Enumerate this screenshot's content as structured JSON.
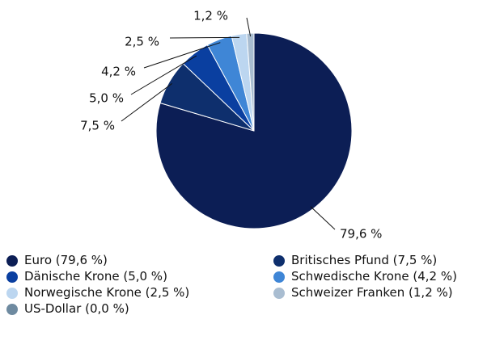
{
  "chart_data": {
    "type": "pie",
    "categories": [
      "Euro (79,6 %)",
      "Britisches Pfund (7,5 %)",
      "Dänische Krone (5,0 %)",
      "Schwedische Krone (4,2 %)",
      "Norwegische Krone (2,5 %)",
      "Schweizer Franken (1,2 %)",
      "US-Dollar (0,0 %)"
    ],
    "values": [
      79.6,
      7.5,
      5.0,
      4.2,
      2.5,
      1.2,
      0.0
    ],
    "value_labels": [
      "79,6 %",
      "7,5 %",
      "5,0 %",
      "4,2 %",
      "2,5 %",
      "1,2 %",
      null
    ],
    "colors": [
      "#0c1e55",
      "#0e2f6d",
      "#0a3fa0",
      "#3f86d6",
      "#bcd6f0",
      "#a9bdd1",
      "#6e8aa0"
    ],
    "legend": "bottom"
  }
}
